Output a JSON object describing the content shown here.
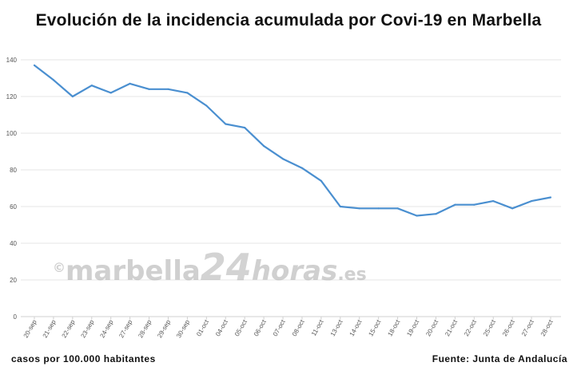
{
  "title": "Evolución de la incidencia acumulada por Covi-19 en Marbella",
  "footer": {
    "left": "casos por 100.000 habitantes",
    "right": "Fuente: Junta de Andalucía"
  },
  "watermark": {
    "copyright": "©",
    "brand": "marbella",
    "number": "24",
    "suffix": "horas",
    "tld": ".es"
  },
  "chart_data": {
    "type": "line",
    "title": "Evolución de la incidencia acumulada por Covi-19 en Marbella",
    "xlabel": "",
    "ylabel": "",
    "ylim": [
      0,
      140
    ],
    "yticks": [
      0,
      20,
      40,
      60,
      80,
      100,
      120,
      140
    ],
    "grid": true,
    "color": "#4a8fd0",
    "categories": [
      "20-sep",
      "21-sep",
      "22-sep",
      "23-sep",
      "24-sep",
      "27-sep",
      "28-sep",
      "29-sep",
      "30-sep",
      "01-oct",
      "04-oct",
      "05-oct",
      "06-oct",
      "07-oct",
      "08-oct",
      "11-oct",
      "13-oct",
      "14-oct",
      "15-oct",
      "18-oct",
      "19-oct",
      "20-oct",
      "21-oct",
      "22-oct",
      "25-oct",
      "26-oct",
      "27-oct",
      "28-oct"
    ],
    "values": [
      137,
      129,
      120,
      126,
      122,
      127,
      124,
      124,
      122,
      115,
      105,
      103,
      93,
      86,
      81,
      74,
      60,
      59,
      59,
      59,
      55,
      56,
      61,
      61,
      63,
      59,
      63,
      65
    ]
  }
}
